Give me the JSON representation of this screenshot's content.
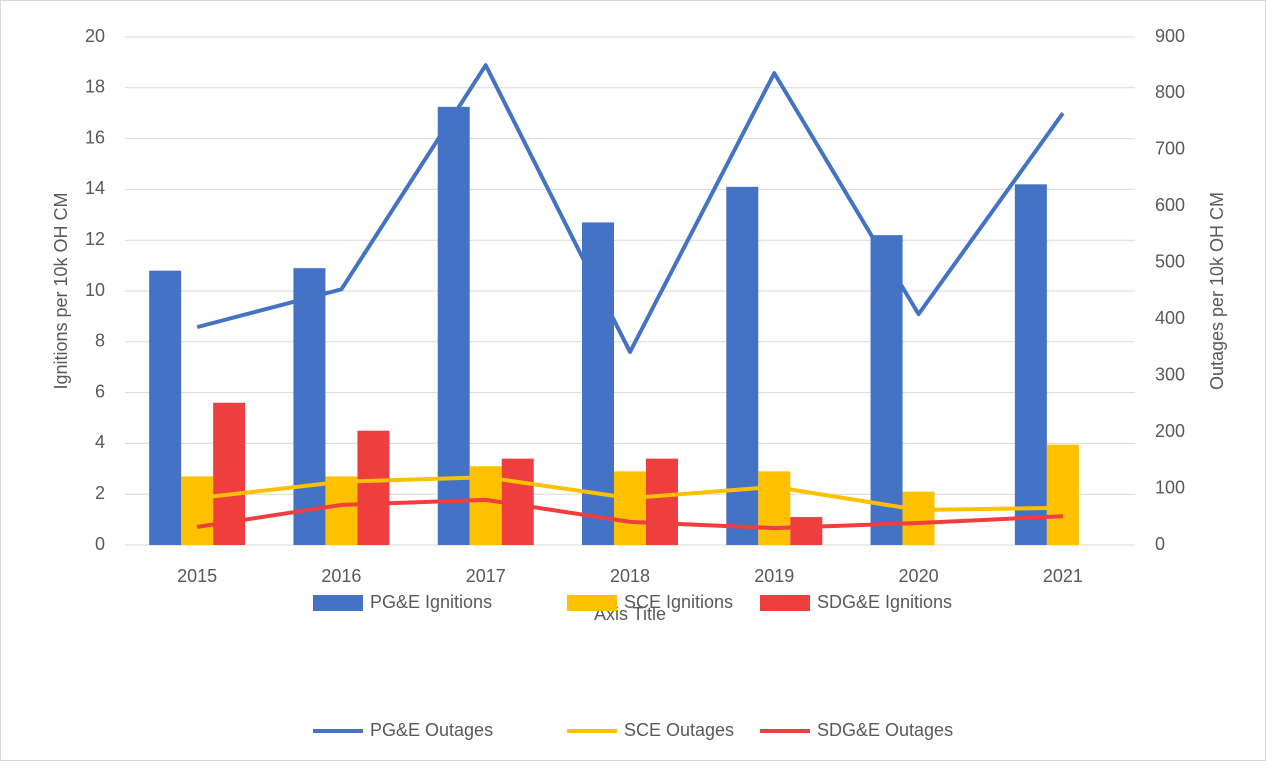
{
  "chart_data": {
    "type": "combo",
    "categories": [
      "2015",
      "2016",
      "2017",
      "2018",
      "2019",
      "2020",
      "2021"
    ],
    "x_label": "Axis Title",
    "y_label": "Ignitions per 10k OH CM",
    "y2_label": "Outages per 10k OH CM",
    "ylim": [
      0,
      20
    ],
    "yticks": [
      0,
      2,
      4,
      6,
      8,
      10,
      12,
      14,
      16,
      18,
      20
    ],
    "y2lim": [
      0,
      900
    ],
    "y2ticks": [
      0,
      100,
      200,
      300,
      400,
      500,
      600,
      700,
      800,
      900
    ],
    "grid": true,
    "legend": "bottom",
    "series": [
      {
        "name": "PG&E Ignitions",
        "type": "bar",
        "color": "#4472c4",
        "values": [
          10.8,
          10.9,
          17.25,
          12.7,
          14.1,
          12.2,
          14.2
        ]
      },
      {
        "name": "SCE Ignitions",
        "type": "bar",
        "color": "#ffc000",
        "values": [
          2.7,
          2.7,
          3.1,
          2.9,
          2.9,
          2.1,
          3.95
        ]
      },
      {
        "name": "SDG&E Ignitions",
        "type": "bar",
        "color": "#ee3e3e",
        "values": [
          5.6,
          4.5,
          3.4,
          3.4,
          1.1,
          null,
          null
        ]
      },
      {
        "name": "PG&E Outages",
        "type": "line",
        "axis": "y2",
        "color": "#4472c4",
        "values": [
          386,
          453,
          850,
          342,
          836,
          409,
          765
        ]
      },
      {
        "name": "SCE Outages",
        "type": "line",
        "axis": "y2",
        "color": "#ffc000",
        "values": [
          83,
          112,
          120,
          83,
          103,
          62,
          66
        ]
      },
      {
        "name": "SDG&E Outages",
        "type": "line",
        "axis": "y2",
        "color": "#ee3e3e",
        "values": [
          32,
          71,
          80,
          41,
          30,
          39,
          51
        ]
      }
    ]
  }
}
